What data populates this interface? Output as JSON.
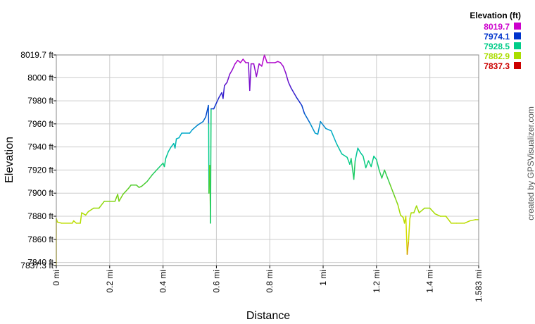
{
  "chart_data": {
    "type": "line",
    "xlabel": "Distance",
    "ylabel": "Elevation",
    "xlim": [
      0,
      1.583
    ],
    "ylim": [
      7837.3,
      8019.7
    ],
    "grid": true,
    "x_ticks": [
      {
        "value": 0,
        "label": "0 mi"
      },
      {
        "value": 0.2,
        "label": "0.2 mi"
      },
      {
        "value": 0.4,
        "label": "0.4 mi"
      },
      {
        "value": 0.6,
        "label": "0.6 mi"
      },
      {
        "value": 0.8,
        "label": "0.8 mi"
      },
      {
        "value": 1.0,
        "label": "1 mi"
      },
      {
        "value": 1.2,
        "label": "1.2 mi"
      },
      {
        "value": 1.4,
        "label": "1.4 mi"
      },
      {
        "value": 1.583,
        "label": "1.583 mi"
      }
    ],
    "y_ticks": [
      {
        "value": 7837.3,
        "label": "7837.3 ft"
      },
      {
        "value": 7840,
        "label": "7840 ft"
      },
      {
        "value": 7860,
        "label": "7860 ft"
      },
      {
        "value": 7880,
        "label": "7880 ft"
      },
      {
        "value": 7900,
        "label": "7900 ft"
      },
      {
        "value": 7920,
        "label": "7920 ft"
      },
      {
        "value": 7940,
        "label": "7940 ft"
      },
      {
        "value": 7960,
        "label": "7960 ft"
      },
      {
        "value": 7980,
        "label": "7980 ft"
      },
      {
        "value": 8000,
        "label": "8000 ft"
      },
      {
        "value": 8019.7,
        "label": "8019.7 ft"
      }
    ],
    "legend": {
      "title": "Elevation (ft)",
      "placement": "top-right",
      "entries": [
        {
          "label": "8019.7",
          "color": "#cc00cc"
        },
        {
          "label": "7974.1",
          "color": "#0033cc"
        },
        {
          "label": "7928.5",
          "color": "#00cc88"
        },
        {
          "label": "7882.9",
          "color": "#aadd00"
        },
        {
          "label": "7837.3",
          "color": "#cc0000"
        }
      ]
    },
    "color_scale": [
      {
        "value": 7837.3,
        "color": "#cc0000"
      },
      {
        "value": 7860,
        "color": "#dddd00"
      },
      {
        "value": 7882.9,
        "color": "#aadd00"
      },
      {
        "value": 7905,
        "color": "#55cc22"
      },
      {
        "value": 7928.5,
        "color": "#00cc88"
      },
      {
        "value": 7952,
        "color": "#00aacc"
      },
      {
        "value": 7974.1,
        "color": "#0033cc"
      },
      {
        "value": 7997,
        "color": "#6611cc"
      },
      {
        "value": 8019.7,
        "color": "#cc00cc"
      }
    ],
    "series": [
      {
        "points": [
          [
            0.0,
            7837.3
          ],
          [
            0.0,
            7878
          ],
          [
            0.004,
            7875
          ],
          [
            0.02,
            7874
          ],
          [
            0.06,
            7874
          ],
          [
            0.065,
            7876
          ],
          [
            0.075,
            7874
          ],
          [
            0.09,
            7874
          ],
          [
            0.095,
            7883
          ],
          [
            0.11,
            7881
          ],
          [
            0.12,
            7884
          ],
          [
            0.14,
            7887
          ],
          [
            0.16,
            7887
          ],
          [
            0.18,
            7893
          ],
          [
            0.22,
            7893
          ],
          [
            0.23,
            7899
          ],
          [
            0.235,
            7893
          ],
          [
            0.25,
            7899
          ],
          [
            0.27,
            7904
          ],
          [
            0.28,
            7907
          ],
          [
            0.3,
            7907
          ],
          [
            0.31,
            7905
          ],
          [
            0.32,
            7906
          ],
          [
            0.34,
            7910
          ],
          [
            0.36,
            7916
          ],
          [
            0.38,
            7921
          ],
          [
            0.4,
            7926
          ],
          [
            0.405,
            7923
          ],
          [
            0.41,
            7930
          ],
          [
            0.42,
            7936
          ],
          [
            0.43,
            7940
          ],
          [
            0.44,
            7943
          ],
          [
            0.445,
            7939
          ],
          [
            0.45,
            7947
          ],
          [
            0.46,
            7948
          ],
          [
            0.47,
            7952
          ],
          [
            0.5,
            7952
          ],
          [
            0.51,
            7955
          ],
          [
            0.53,
            7959
          ],
          [
            0.55,
            7962
          ],
          [
            0.56,
            7966
          ],
          [
            0.57,
            7976
          ],
          [
            0.571,
            7960
          ],
          [
            0.572,
            7900
          ],
          [
            0.575,
            7924
          ],
          [
            0.578,
            7874
          ],
          [
            0.58,
            7973
          ],
          [
            0.59,
            7973
          ],
          [
            0.6,
            7978
          ],
          [
            0.61,
            7983
          ],
          [
            0.62,
            7987
          ],
          [
            0.625,
            7982
          ],
          [
            0.63,
            7993
          ],
          [
            0.64,
            7996
          ],
          [
            0.65,
            8003
          ],
          [
            0.66,
            8007
          ],
          [
            0.67,
            8012
          ],
          [
            0.68,
            8015
          ],
          [
            0.69,
            8013
          ],
          [
            0.7,
            8016
          ],
          [
            0.71,
            8013
          ],
          [
            0.72,
            8013
          ],
          [
            0.725,
            7989
          ],
          [
            0.73,
            8012
          ],
          [
            0.74,
            8012
          ],
          [
            0.75,
            8001
          ],
          [
            0.76,
            8012
          ],
          [
            0.77,
            8010
          ],
          [
            0.78,
            8019.7
          ],
          [
            0.79,
            8013
          ],
          [
            0.82,
            8013
          ],
          [
            0.83,
            8014
          ],
          [
            0.84,
            8013
          ],
          [
            0.85,
            8010
          ],
          [
            0.86,
            8004
          ],
          [
            0.87,
            7996
          ],
          [
            0.88,
            7991
          ],
          [
            0.9,
            7983
          ],
          [
            0.92,
            7976
          ],
          [
            0.93,
            7969
          ],
          [
            0.95,
            7961
          ],
          [
            0.97,
            7952
          ],
          [
            0.98,
            7951
          ],
          [
            0.99,
            7962
          ],
          [
            1.01,
            7956
          ],
          [
            1.03,
            7954
          ],
          [
            1.05,
            7943
          ],
          [
            1.07,
            7934
          ],
          [
            1.09,
            7931
          ],
          [
            1.1,
            7925
          ],
          [
            1.105,
            7930
          ],
          [
            1.115,
            7912
          ],
          [
            1.12,
            7928
          ],
          [
            1.13,
            7939
          ],
          [
            1.14,
            7935
          ],
          [
            1.15,
            7932
          ],
          [
            1.16,
            7922
          ],
          [
            1.17,
            7928
          ],
          [
            1.18,
            7923
          ],
          [
            1.19,
            7932
          ],
          [
            1.2,
            7929
          ],
          [
            1.21,
            7920
          ],
          [
            1.22,
            7913
          ],
          [
            1.23,
            7920
          ],
          [
            1.25,
            7908
          ],
          [
            1.27,
            7896
          ],
          [
            1.28,
            7890
          ],
          [
            1.29,
            7881
          ],
          [
            1.3,
            7879
          ],
          [
            1.305,
            7874
          ],
          [
            1.31,
            7880
          ],
          [
            1.315,
            7847
          ],
          [
            1.32,
            7858
          ],
          [
            1.325,
            7878
          ],
          [
            1.33,
            7883
          ],
          [
            1.34,
            7883
          ],
          [
            1.35,
            7889
          ],
          [
            1.36,
            7883
          ],
          [
            1.38,
            7887
          ],
          [
            1.4,
            7887
          ],
          [
            1.42,
            7882
          ],
          [
            1.44,
            7880
          ],
          [
            1.46,
            7880
          ],
          [
            1.48,
            7874
          ],
          [
            1.5,
            7874
          ],
          [
            1.53,
            7874
          ],
          [
            1.55,
            7876
          ],
          [
            1.57,
            7877
          ],
          [
            1.583,
            7877
          ]
        ]
      }
    ]
  },
  "credit": "created by GPSVisualizer.com"
}
